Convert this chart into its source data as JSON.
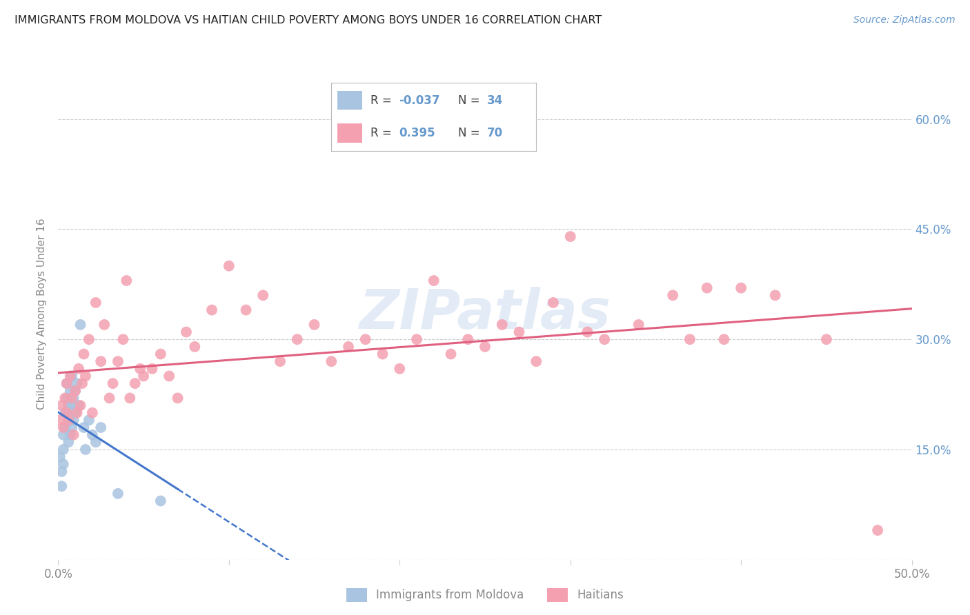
{
  "title": "IMMIGRANTS FROM MOLDOVA VS HAITIAN CHILD POVERTY AMONG BOYS UNDER 16 CORRELATION CHART",
  "source": "Source: ZipAtlas.com",
  "ylabel": "Child Poverty Among Boys Under 16",
  "xlim": [
    0.0,
    0.5
  ],
  "ylim": [
    0.0,
    0.67
  ],
  "yticks": [
    0.0,
    0.15,
    0.3,
    0.45,
    0.6
  ],
  "xticks": [
    0.0,
    0.1,
    0.2,
    0.3,
    0.4,
    0.5
  ],
  "xtick_labels": [
    "0.0%",
    "",
    "",
    "",
    "",
    "50.0%"
  ],
  "ytick_labels": [
    "",
    "15.0%",
    "30.0%",
    "45.0%",
    "60.0%"
  ],
  "moldova_color": "#a8c4e0",
  "haiti_color": "#f4a0b0",
  "moldova_line_color": "#4477cc",
  "haiti_line_color": "#e06080",
  "moldova_R": -0.037,
  "moldova_N": 34,
  "haiti_R": 0.395,
  "haiti_N": 70,
  "legend_label_moldova": "Immigrants from Moldova",
  "legend_label_haiti": "Haitians",
  "watermark": "ZIPatlas",
  "moldova_x": [
    0.001,
    0.002,
    0.002,
    0.003,
    0.003,
    0.003,
    0.004,
    0.004,
    0.005,
    0.005,
    0.005,
    0.006,
    0.006,
    0.006,
    0.007,
    0.007,
    0.007,
    0.008,
    0.008,
    0.009,
    0.009,
    0.01,
    0.01,
    0.011,
    0.012,
    0.013,
    0.015,
    0.016,
    0.018,
    0.02,
    0.022,
    0.025,
    0.035,
    0.06
  ],
  "moldova_y": [
    0.14,
    0.12,
    0.1,
    0.17,
    0.15,
    0.13,
    0.2,
    0.18,
    0.22,
    0.2,
    0.24,
    0.16,
    0.21,
    0.19,
    0.23,
    0.21,
    0.17,
    0.25,
    0.18,
    0.22,
    0.19,
    0.23,
    0.2,
    0.24,
    0.21,
    0.32,
    0.18,
    0.15,
    0.19,
    0.17,
    0.16,
    0.18,
    0.09,
    0.08
  ],
  "haiti_x": [
    0.001,
    0.002,
    0.003,
    0.004,
    0.005,
    0.005,
    0.006,
    0.007,
    0.008,
    0.009,
    0.01,
    0.011,
    0.012,
    0.013,
    0.014,
    0.015,
    0.016,
    0.018,
    0.02,
    0.022,
    0.025,
    0.027,
    0.03,
    0.032,
    0.035,
    0.038,
    0.04,
    0.042,
    0.045,
    0.048,
    0.05,
    0.055,
    0.06,
    0.065,
    0.07,
    0.075,
    0.08,
    0.09,
    0.1,
    0.11,
    0.12,
    0.13,
    0.14,
    0.15,
    0.16,
    0.17,
    0.18,
    0.19,
    0.2,
    0.21,
    0.22,
    0.23,
    0.24,
    0.25,
    0.26,
    0.27,
    0.28,
    0.29,
    0.3,
    0.31,
    0.32,
    0.34,
    0.36,
    0.37,
    0.38,
    0.39,
    0.4,
    0.42,
    0.45,
    0.48
  ],
  "haiti_y": [
    0.19,
    0.21,
    0.18,
    0.22,
    0.2,
    0.24,
    0.19,
    0.25,
    0.22,
    0.17,
    0.23,
    0.2,
    0.26,
    0.21,
    0.24,
    0.28,
    0.25,
    0.3,
    0.2,
    0.35,
    0.27,
    0.32,
    0.22,
    0.24,
    0.27,
    0.3,
    0.38,
    0.22,
    0.24,
    0.26,
    0.25,
    0.26,
    0.28,
    0.25,
    0.22,
    0.31,
    0.29,
    0.34,
    0.4,
    0.34,
    0.36,
    0.27,
    0.3,
    0.32,
    0.27,
    0.29,
    0.3,
    0.28,
    0.26,
    0.3,
    0.38,
    0.28,
    0.3,
    0.29,
    0.32,
    0.31,
    0.27,
    0.35,
    0.44,
    0.31,
    0.3,
    0.32,
    0.36,
    0.3,
    0.37,
    0.3,
    0.37,
    0.36,
    0.3,
    0.04
  ],
  "background_color": "#ffffff",
  "grid_color": "#cccccc",
  "title_color": "#222222",
  "axis_label_color": "#888888",
  "right_tick_color": "#6699cc"
}
